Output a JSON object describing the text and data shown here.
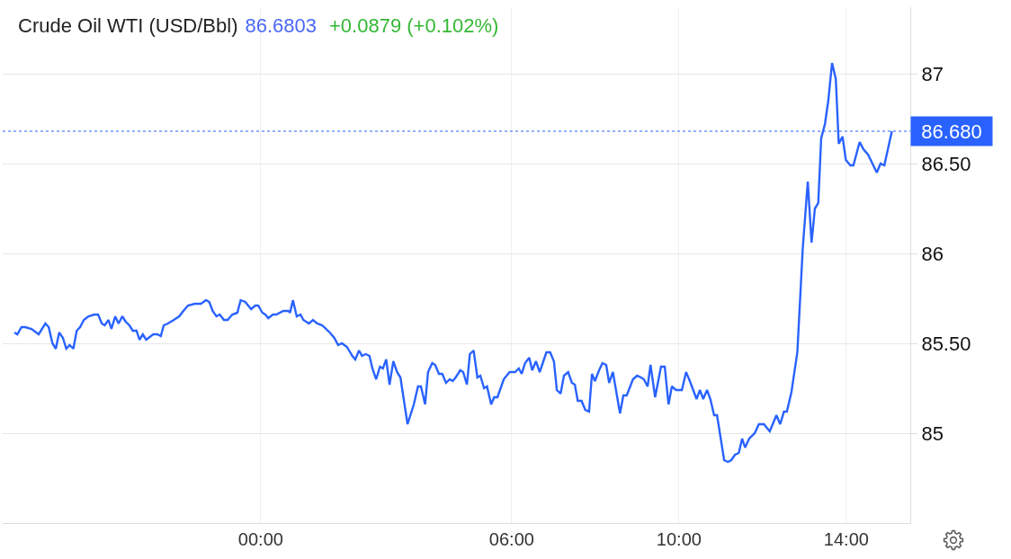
{
  "chart_data": {
    "type": "line",
    "title": "Crude Oil WTI (USD/Bbl)",
    "annotations": [
      "86.6803",
      "+0.0879 (+0.102%)"
    ],
    "xlim": [
      -6.17,
      15.53
    ],
    "xticks": [
      {
        "value": 0,
        "label": "00:00"
      },
      {
        "value": 6,
        "label": "06:00"
      },
      {
        "value": 10,
        "label": "10:00"
      },
      {
        "value": 14,
        "label": "14:00"
      }
    ],
    "ylim": [
      84.5,
      87.37
    ],
    "yticks": [
      85,
      {
        "value": 85.5,
        "label": "85.50"
      },
      86,
      {
        "value": 86.5,
        "label": "86.50"
      },
      87
    ],
    "grid": true,
    "line_style": "solid",
    "ref_lines": [
      {
        "axis": "y",
        "value": 86.68,
        "label": "86.680",
        "color": "#2962ff",
        "line_style": "dotted"
      }
    ],
    "series": [
      {
        "color": "#2962ff",
        "x": [
          -5.89,
          -5.82,
          -5.72,
          -5.63,
          -5.48,
          -5.31,
          -5.15,
          -5.07,
          -4.98,
          -4.9,
          -4.82,
          -4.73,
          -4.65,
          -4.57,
          -4.48,
          -4.4,
          -4.32,
          -4.23,
          -4.12,
          -3.98,
          -3.89,
          -3.8,
          -3.73,
          -3.64,
          -3.57,
          -3.48,
          -3.4,
          -3.31,
          -3.23,
          -3.14,
          -3.06,
          -2.97,
          -2.9,
          -2.82,
          -2.74,
          -2.57,
          -2.47,
          -2.39,
          -2.32,
          -2.22,
          -2.08,
          -1.95,
          -1.85,
          -1.74,
          -1.58,
          -1.43,
          -1.31,
          -1.23,
          -1.15,
          -1.06,
          -0.98,
          -0.88,
          -0.79,
          -0.68,
          -0.56,
          -0.48,
          -0.37,
          -0.23,
          -0.13,
          -0.06,
          0.04,
          0.11,
          0.18,
          0.29,
          0.37,
          0.54,
          0.66,
          0.7,
          0.77,
          0.86,
          0.95,
          1.02,
          1.15,
          1.25,
          1.35,
          1.47,
          1.65,
          1.76,
          1.85,
          1.94,
          2.06,
          2.19,
          2.26,
          2.35,
          2.42,
          2.51,
          2.6,
          2.67,
          2.76,
          2.85,
          2.92,
          3.0,
          3.08,
          3.17,
          3.26,
          3.34,
          3.51,
          3.66,
          3.76,
          3.83,
          3.93,
          4.0,
          4.1,
          4.17,
          4.26,
          4.34,
          4.43,
          4.52,
          4.59,
          4.66,
          4.77,
          4.84,
          4.93,
          5.0,
          5.09,
          5.18,
          5.25,
          5.34,
          5.41,
          5.51,
          5.58,
          5.66,
          5.81,
          5.95,
          6.08,
          6.17,
          6.24,
          6.32,
          6.42,
          6.49,
          6.58,
          6.67,
          6.83,
          6.92,
          7.01,
          7.08,
          7.17,
          7.25,
          7.35,
          7.44,
          7.51,
          7.58,
          7.67,
          7.76,
          7.85,
          7.92,
          7.99,
          8.09,
          8.17,
          8.26,
          8.33,
          8.42,
          8.59,
          8.67,
          8.75,
          8.9,
          9.0,
          9.09,
          9.16,
          9.25,
          9.32,
          9.43,
          9.57,
          9.66,
          9.75,
          9.83,
          9.93,
          10.07,
          10.17,
          10.26,
          10.42,
          10.5,
          10.58,
          10.67,
          10.75,
          10.84,
          10.91,
          11.08,
          11.17,
          11.25,
          11.34,
          11.43,
          11.51,
          11.58,
          11.68,
          11.81,
          11.91,
          12.03,
          12.17,
          12.33,
          12.42,
          12.51,
          12.58,
          12.69,
          12.83,
          12.96,
          13.08,
          13.17,
          13.25,
          13.33,
          13.4,
          13.49,
          13.57,
          13.66,
          13.75,
          13.82,
          13.91,
          13.99,
          14.1,
          14.17,
          14.32,
          14.41,
          14.52,
          14.73,
          14.82,
          14.91,
          15.09
        ],
        "values": [
          85.56,
          85.55,
          85.59,
          85.59,
          85.58,
          85.55,
          85.61,
          85.59,
          85.5,
          85.47,
          85.56,
          85.53,
          85.47,
          85.49,
          85.47,
          85.57,
          85.59,
          85.63,
          85.65,
          85.66,
          85.66,
          85.61,
          85.6,
          85.63,
          85.58,
          85.65,
          85.61,
          85.65,
          85.62,
          85.6,
          85.57,
          85.57,
          85.52,
          85.55,
          85.52,
          85.55,
          85.55,
          85.54,
          85.6,
          85.61,
          85.63,
          85.65,
          85.68,
          85.71,
          85.72,
          85.72,
          85.74,
          85.73,
          85.68,
          85.65,
          85.66,
          85.63,
          85.63,
          85.66,
          85.67,
          85.74,
          85.73,
          85.69,
          85.71,
          85.71,
          85.67,
          85.66,
          85.64,
          85.66,
          85.66,
          85.68,
          85.68,
          85.67,
          85.74,
          85.65,
          85.66,
          85.63,
          85.61,
          85.63,
          85.61,
          85.6,
          85.56,
          85.53,
          85.49,
          85.5,
          85.48,
          85.43,
          85.41,
          85.46,
          85.43,
          85.44,
          85.43,
          85.36,
          85.3,
          85.37,
          85.36,
          85.41,
          85.27,
          85.4,
          85.34,
          85.31,
          85.05,
          85.16,
          85.26,
          85.26,
          85.16,
          85.34,
          85.39,
          85.38,
          85.33,
          85.33,
          85.28,
          85.3,
          85.29,
          85.31,
          85.35,
          85.34,
          85.27,
          85.44,
          85.46,
          85.31,
          85.32,
          85.25,
          85.26,
          85.16,
          85.2,
          85.2,
          85.3,
          85.34,
          85.34,
          85.36,
          85.33,
          85.39,
          85.42,
          85.35,
          85.4,
          85.34,
          85.45,
          85.45,
          85.4,
          85.24,
          85.22,
          85.32,
          85.34,
          85.28,
          85.27,
          85.18,
          85.18,
          85.13,
          85.12,
          85.33,
          85.29,
          85.35,
          85.39,
          85.38,
          85.28,
          85.34,
          85.11,
          85.21,
          85.21,
          85.3,
          85.32,
          85.31,
          85.3,
          85.26,
          85.38,
          85.2,
          85.37,
          85.37,
          85.16,
          85.26,
          85.24,
          85.24,
          85.34,
          85.29,
          85.19,
          85.24,
          85.19,
          85.24,
          85.19,
          85.1,
          85.1,
          84.85,
          84.84,
          84.85,
          84.88,
          84.89,
          84.97,
          84.92,
          84.97,
          85.0,
          85.05,
          85.05,
          85.01,
          85.1,
          85.05,
          85.12,
          85.12,
          85.23,
          85.45,
          86.03,
          86.4,
          86.06,
          86.25,
          86.28,
          86.64,
          86.72,
          86.85,
          87.06,
          86.97,
          86.61,
          86.65,
          86.52,
          86.49,
          86.49,
          86.62,
          86.58,
          86.55,
          86.45,
          86.5,
          86.49,
          86.68
        ]
      }
    ]
  }
}
